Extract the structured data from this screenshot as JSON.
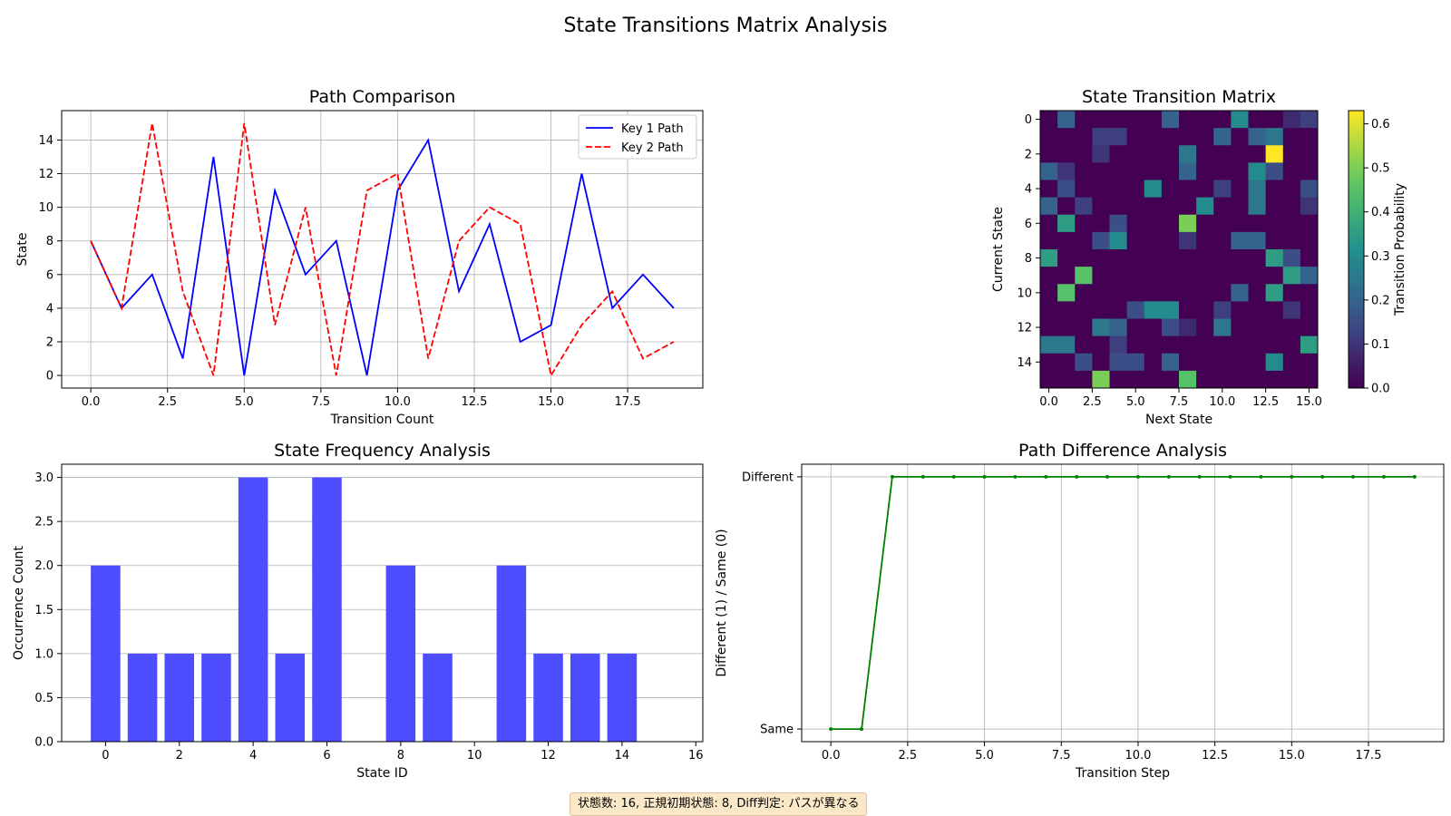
{
  "figure": {
    "suptitle": "State Transitions Matrix Analysis",
    "footer": "状態数: 16, 正規初期状態: 8, Diff判定: パスが異なる"
  },
  "chart_data": [
    {
      "id": "path",
      "type": "line",
      "title": "Path Comparison",
      "xlabel": "Transition Count",
      "ylabel": "State",
      "xlim": [
        -0.95,
        19.95
      ],
      "ylim": [
        -0.75,
        15.75
      ],
      "xticks": [
        0,
        2.5,
        5,
        7.5,
        10,
        12.5,
        15,
        17.5
      ],
      "xtick_labels": [
        "0.0",
        "2.5",
        "5.0",
        "7.5",
        "10.0",
        "12.5",
        "15.0",
        "17.5"
      ],
      "yticks": [
        0,
        2,
        4,
        6,
        8,
        10,
        12,
        14
      ],
      "ytick_labels": [
        "0",
        "2",
        "4",
        "6",
        "8",
        "10",
        "12",
        "14"
      ],
      "grid": true,
      "legend": "top-right",
      "x": [
        0,
        1,
        2,
        3,
        4,
        5,
        6,
        7,
        8,
        9,
        10,
        11,
        12,
        13,
        14,
        15,
        16,
        17,
        18,
        19
      ],
      "series": [
        {
          "name": "Key 1 Path",
          "color": "#0000ff",
          "style": "solid",
          "values": [
            8,
            4,
            6,
            1,
            13,
            0,
            11,
            6,
            8,
            0,
            11,
            14,
            5,
            9,
            2,
            3,
            12,
            4,
            6,
            4
          ]
        },
        {
          "name": "Key 2 Path",
          "color": "#ff0000",
          "style": "dashed",
          "values": [
            8,
            4,
            15,
            5,
            0,
            15,
            3,
            10,
            0,
            11,
            12,
            1,
            8,
            10,
            9,
            0,
            3,
            5,
            1,
            2
          ]
        }
      ]
    },
    {
      "id": "matrix",
      "type": "heatmap",
      "title": "State Transition Matrix",
      "xlabel": "Next State",
      "ylabel": "Current State",
      "colorbar_label": "Transition Probability",
      "vmin": 0,
      "vmax": 0.63,
      "xticks": [
        0,
        2.5,
        5,
        7.5,
        10,
        12.5,
        15
      ],
      "xtick_labels": [
        "0.0",
        "2.5",
        "5.0",
        "7.5",
        "10.0",
        "12.5",
        "15.0"
      ],
      "yticks": [
        0,
        2,
        4,
        6,
        8,
        10,
        12,
        14
      ],
      "ytick_labels": [
        "0",
        "2",
        "4",
        "6",
        "8",
        "10",
        "12",
        "14"
      ],
      "cbar_ticks": [
        0,
        0.1,
        0.2,
        0.3,
        0.4,
        0.5,
        0.6
      ],
      "cbar_tick_labels": [
        "0.0",
        "0.1",
        "0.2",
        "0.3",
        "0.4",
        "0.5",
        "0.6"
      ],
      "matrix": [
        [
          0,
          0.2,
          0,
          0,
          0,
          0,
          0,
          0.2,
          0,
          0,
          0,
          0.3,
          0,
          0,
          0.08,
          0.12
        ],
        [
          0,
          0,
          0,
          0.12,
          0.12,
          0,
          0,
          0,
          0,
          0,
          0.2,
          0,
          0.2,
          0.25,
          0,
          0
        ],
        [
          0,
          0,
          0,
          0.1,
          0,
          0,
          0,
          0,
          0.25,
          0,
          0,
          0,
          0,
          0.63,
          0,
          0
        ],
        [
          0.2,
          0.1,
          0,
          0,
          0,
          0,
          0,
          0,
          0.2,
          0,
          0,
          0,
          0.3,
          0.15,
          0,
          0
        ],
        [
          0,
          0.15,
          0,
          0,
          0,
          0,
          0.3,
          0,
          0,
          0,
          0.12,
          0,
          0.25,
          0,
          0,
          0.15
        ],
        [
          0.2,
          0,
          0.12,
          0,
          0,
          0,
          0,
          0,
          0,
          0.3,
          0,
          0,
          0.25,
          0,
          0,
          0.1
        ],
        [
          0,
          0.35,
          0,
          0,
          0.15,
          0,
          0,
          0,
          0.5,
          0,
          0,
          0,
          0,
          0,
          0,
          0
        ],
        [
          0,
          0,
          0,
          0.15,
          0.3,
          0,
          0,
          0,
          0.1,
          0,
          0,
          0.2,
          0.2,
          0,
          0,
          0
        ],
        [
          0.35,
          0,
          0,
          0,
          0,
          0,
          0,
          0,
          0,
          0,
          0,
          0,
          0,
          0.35,
          0.15,
          0
        ],
        [
          0,
          0,
          0.45,
          0,
          0,
          0,
          0,
          0,
          0,
          0,
          0,
          0,
          0,
          0,
          0.35,
          0.2
        ],
        [
          0,
          0.45,
          0,
          0,
          0,
          0,
          0,
          0,
          0,
          0,
          0,
          0.2,
          0,
          0.35,
          0,
          0
        ],
        [
          0,
          0,
          0,
          0,
          0,
          0.15,
          0.3,
          0.3,
          0,
          0,
          0.12,
          0,
          0,
          0,
          0.1,
          0
        ],
        [
          0,
          0,
          0,
          0.25,
          0.2,
          0,
          0,
          0.15,
          0.08,
          0,
          0.25,
          0,
          0,
          0,
          0,
          0
        ],
        [
          0.25,
          0.25,
          0,
          0,
          0.12,
          0,
          0,
          0,
          0,
          0,
          0,
          0,
          0,
          0,
          0,
          0.35
        ],
        [
          0,
          0,
          0.15,
          0,
          0.15,
          0.15,
          0,
          0.2,
          0,
          0,
          0,
          0,
          0,
          0.3,
          0,
          0
        ],
        [
          0,
          0,
          0,
          0.5,
          0,
          0,
          0,
          0,
          0.45,
          0,
          0,
          0,
          0,
          0,
          0,
          0
        ]
      ]
    },
    {
      "id": "freq",
      "type": "bar",
      "title": "State Frequency Analysis",
      "xlabel": "State ID",
      "ylabel": "Occurrence Count",
      "color": "#4d4dff",
      "xlim": [
        -1.19,
        16.19
      ],
      "ylim": [
        0,
        3.15
      ],
      "xticks": [
        0,
        2,
        4,
        6,
        8,
        10,
        12,
        14,
        16
      ],
      "xtick_labels": [
        "0",
        "2",
        "4",
        "6",
        "8",
        "10",
        "12",
        "14",
        "16"
      ],
      "yticks": [
        0,
        0.5,
        1,
        1.5,
        2,
        2.5,
        3
      ],
      "ytick_labels": [
        "0.0",
        "0.5",
        "1.0",
        "1.5",
        "2.0",
        "2.5",
        "3.0"
      ],
      "grid": "y",
      "categories": [
        0,
        1,
        2,
        3,
        4,
        5,
        6,
        7,
        8,
        9,
        10,
        11,
        12,
        13,
        14,
        15
      ],
      "values": [
        2,
        1,
        1,
        1,
        3,
        1,
        3,
        0,
        2,
        1,
        0,
        2,
        1,
        1,
        1,
        0
      ]
    },
    {
      "id": "diff",
      "type": "line",
      "title": "Path Difference Analysis",
      "xlabel": "Transition Step",
      "ylabel": "Different (1) / Same (0)",
      "color": "#008000",
      "xlim": [
        -0.95,
        19.95
      ],
      "ylim": [
        -0.05,
        1.05
      ],
      "xticks": [
        0,
        2.5,
        5,
        7.5,
        10,
        12.5,
        15,
        17.5
      ],
      "xtick_labels": [
        "0.0",
        "2.5",
        "5.0",
        "7.5",
        "10.0",
        "12.5",
        "15.0",
        "17.5"
      ],
      "yticks": [
        0,
        1
      ],
      "ytick_labels": [
        "Same",
        "Different"
      ],
      "grid": true,
      "x": [
        0,
        1,
        2,
        3,
        4,
        5,
        6,
        7,
        8,
        9,
        10,
        11,
        12,
        13,
        14,
        15,
        16,
        17,
        18,
        19
      ],
      "values": [
        0,
        0,
        1,
        1,
        1,
        1,
        1,
        1,
        1,
        1,
        1,
        1,
        1,
        1,
        1,
        1,
        1,
        1,
        1,
        1
      ]
    }
  ]
}
